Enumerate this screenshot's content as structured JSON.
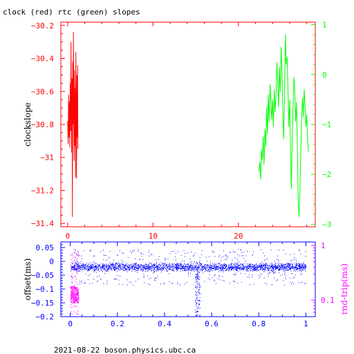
{
  "chart_data": [
    {
      "type": "line",
      "title": "clock (red) rtc (green) slopes",
      "ylabel": "clockslope",
      "xlim": [
        -0.8,
        29.0
      ],
      "ylim": [
        -31.42,
        -30.18
      ],
      "y2lim": [
        -3.05,
        1.05
      ],
      "x_ticks": [
        "0",
        "10",
        "20"
      ],
      "y_ticks": [
        "-30.2",
        "-30.4",
        "-30.6",
        "-30.8",
        "-31",
        "-31.2",
        "-31.4"
      ],
      "y2_ticks": [
        "1",
        "0",
        "-1",
        "-2",
        "-3"
      ],
      "colors": {
        "frame": "#ff0000",
        "left_axis": "#ff0000",
        "right_axis": "#00ff00"
      },
      "series": [
        {
          "color": "#ff0000",
          "axis": "left",
          "points": [
            [
              0.0,
              -30.78
            ],
            [
              0.06,
              -30.92
            ],
            [
              0.11,
              -30.62
            ],
            [
              0.16,
              -30.88
            ],
            [
              0.2,
              -30.66
            ],
            [
              0.25,
              -30.94
            ],
            [
              0.3,
              -30.55
            ],
            [
              0.35,
              -30.84
            ],
            [
              0.39,
              -30.3
            ],
            [
              0.43,
              -30.71
            ],
            [
              0.47,
              -30.97
            ],
            [
              0.51,
              -30.52
            ],
            [
              0.55,
              -31.36
            ],
            [
              0.59,
              -30.42
            ],
            [
              0.63,
              -30.8
            ],
            [
              0.67,
              -30.24
            ],
            [
              0.71,
              -30.68
            ],
            [
              0.75,
              -31.02
            ],
            [
              0.8,
              -30.47
            ],
            [
              0.84,
              -30.93
            ],
            [
              0.88,
              -30.58
            ],
            [
              0.92,
              -31.12
            ],
            [
              0.96,
              -30.36
            ],
            [
              1.0,
              -30.74
            ],
            [
              1.04,
              -31.13
            ],
            [
              1.08,
              -30.5
            ],
            [
              1.12,
              -30.88
            ],
            [
              1.16,
              -30.44
            ],
            [
              1.2,
              -30.95
            ]
          ]
        },
        {
          "color": "#00ff00",
          "axis": "right",
          "points": [
            [
              22.4,
              -1.95
            ],
            [
              22.5,
              -1.75
            ],
            [
              22.6,
              -2.1
            ],
            [
              22.7,
              -1.5
            ],
            [
              22.8,
              -1.72
            ],
            [
              22.9,
              -1.25
            ],
            [
              23.0,
              -1.8
            ],
            [
              23.1,
              -1.1
            ],
            [
              23.2,
              -1.45
            ],
            [
              23.3,
              -0.65
            ],
            [
              23.4,
              -1.2
            ],
            [
              23.5,
              -0.4
            ],
            [
              23.6,
              -0.95
            ],
            [
              23.7,
              -0.2
            ],
            [
              23.8,
              -0.55
            ],
            [
              23.9,
              -0.9
            ],
            [
              24.0,
              -0.5
            ],
            [
              24.1,
              -1.05
            ],
            [
              24.2,
              -0.3
            ],
            [
              24.3,
              -0.75
            ],
            [
              24.4,
              -0.45
            ],
            [
              24.5,
              0.25
            ],
            [
              24.6,
              -0.15
            ],
            [
              24.7,
              -0.65
            ],
            [
              24.8,
              0.15
            ],
            [
              24.9,
              -0.35
            ],
            [
              25.0,
              0.55
            ],
            [
              25.1,
              0.05
            ],
            [
              25.2,
              -0.8
            ],
            [
              25.3,
              -1.3
            ],
            [
              25.4,
              -0.45
            ],
            [
              25.5,
              0.8
            ],
            [
              25.6,
              0.2
            ],
            [
              25.7,
              0.35
            ],
            [
              25.8,
              -0.25
            ],
            [
              25.9,
              -1.05
            ],
            [
              26.0,
              -0.5
            ],
            [
              26.1,
              -1.5
            ],
            [
              26.2,
              -2.3
            ],
            [
              26.3,
              -1.2
            ],
            [
              26.4,
              -0.7
            ],
            [
              26.5,
              -0.05
            ],
            [
              26.6,
              -0.35
            ],
            [
              26.7,
              -0.95
            ],
            [
              26.8,
              -0.55
            ],
            [
              26.9,
              -1.45
            ],
            [
              27.0,
              -2.55
            ],
            [
              27.1,
              -2.85
            ],
            [
              27.2,
              -2.3
            ],
            [
              27.3,
              -1.6
            ],
            [
              27.4,
              -0.9
            ],
            [
              27.5,
              -0.45
            ],
            [
              27.6,
              -0.85
            ],
            [
              27.7,
              -0.3
            ],
            [
              27.8,
              -0.65
            ],
            [
              27.9,
              -1.05
            ],
            [
              28.0,
              -0.8
            ],
            [
              28.1,
              -1.3
            ],
            [
              28.2,
              -1.55
            ]
          ]
        }
      ]
    },
    {
      "type": "scatter",
      "ylabel": "offset(ms)",
      "y2label": "rnd-trip(ms)",
      "xlim": [
        -0.04,
        1.04
      ],
      "ylim": [
        -0.2,
        0.07
      ],
      "y2lim": [
        0.05,
        1.15
      ],
      "y2_scale": "log",
      "x_ticks": [
        "0",
        "0.2",
        "0.4",
        "0.6",
        "0.8",
        "1"
      ],
      "y_ticks": [
        "0.05",
        "0",
        "-0.05",
        "-0.1",
        "-0.15",
        "-0.2"
      ],
      "y2_ticks": [
        "1",
        "0.1"
      ],
      "colors": {
        "frame": "#0000ff",
        "offset": "#0000ff",
        "rnd_trip": "#ff00ff"
      },
      "series": [
        {
          "color": "#0000ff",
          "x_range": [
            0.0,
            1.0
          ],
          "band_center": -0.02,
          "band_halfwidth": 0.017,
          "outlier_range": [
            -0.085,
            0.045
          ],
          "dip": {
            "x": 0.54,
            "y_min": -0.2
          }
        },
        {
          "color": "#ff00ff",
          "x_range": [
            0.0,
            0.035
          ],
          "y_range": [
            -0.19,
            0.045
          ]
        }
      ]
    }
  ],
  "footer": "2021-08-22  boson.physics.ubc.ca"
}
